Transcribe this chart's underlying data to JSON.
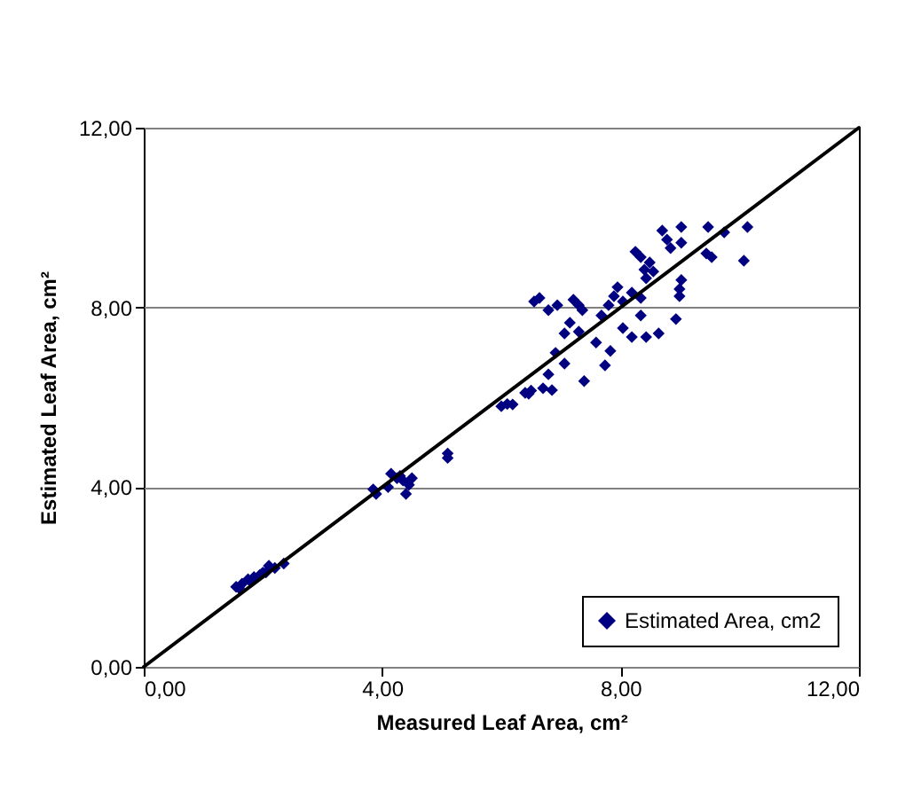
{
  "chart_data": {
    "type": "scatter",
    "xlabel": "Measured Leaf Area, cm²",
    "ylabel": "Estimated Leaf Area, cm²",
    "xlim": [
      0,
      12
    ],
    "ylim": [
      0,
      12
    ],
    "xticks": [
      {
        "value": 0,
        "label": "0,00"
      },
      {
        "value": 4,
        "label": "4,00"
      },
      {
        "value": 8,
        "label": "8,00"
      },
      {
        "value": 12,
        "label": "12,00"
      }
    ],
    "yticks": [
      {
        "value": 0,
        "label": "0,00"
      },
      {
        "value": 4,
        "label": "4,00"
      },
      {
        "value": 8,
        "label": "8,00"
      },
      {
        "value": 12,
        "label": "12,00"
      }
    ],
    "grid": "y",
    "legend": "bottom right",
    "marker": "diamond",
    "series": [
      {
        "name": "Estimated Area, cm2",
        "color": "#000080",
        "x": [
          1.55,
          1.6,
          1.65,
          1.75,
          1.8,
          1.85,
          1.95,
          2.0,
          2.05,
          2.1,
          2.2,
          2.35,
          3.85,
          3.9,
          4.1,
          4.15,
          4.25,
          4.3,
          4.35,
          4.4,
          4.45,
          4.5,
          5.1,
          5.1,
          6.0,
          6.1,
          6.4,
          6.5,
          6.19,
          6.46,
          6.7,
          6.85,
          6.79,
          7.06,
          6.91,
          7.39,
          7.74,
          7.83,
          7.59,
          7.06,
          7.3,
          7.15,
          6.55,
          6.64,
          6.79,
          6.94,
          7.21,
          7.3,
          7.36,
          7.68,
          7.8,
          7.95,
          8.04,
          8.19,
          8.19,
          8.34,
          8.43,
          8.34,
          8.43,
          8.25,
          8.34,
          8.49,
          8.55,
          8.64,
          8.7,
          8.78,
          8.84,
          9.02,
          8.93,
          8.99,
          8.99,
          9.02,
          9.02,
          9.47,
          9.44,
          9.53,
          9.74,
          10.13,
          10.07,
          8.4,
          7.89,
          8.04
        ],
        "values": [
          1.78,
          1.75,
          1.85,
          1.95,
          1.9,
          2.0,
          2.05,
          2.1,
          2.1,
          2.25,
          2.2,
          2.3,
          3.95,
          3.85,
          4.0,
          4.3,
          4.2,
          4.25,
          4.15,
          3.85,
          4.05,
          4.2,
          4.75,
          4.65,
          5.8,
          5.85,
          6.1,
          6.15,
          5.84,
          6.08,
          6.2,
          6.16,
          6.51,
          6.75,
          6.99,
          6.36,
          6.71,
          7.03,
          7.22,
          7.42,
          7.46,
          7.66,
          8.13,
          8.21,
          7.94,
          8.05,
          8.17,
          8.05,
          7.94,
          7.82,
          8.05,
          8.45,
          7.54,
          7.34,
          8.33,
          7.82,
          7.34,
          8.21,
          8.65,
          9.24,
          9.12,
          9.0,
          8.8,
          7.42,
          9.71,
          9.51,
          9.32,
          9.44,
          7.74,
          8.25,
          8.41,
          8.61,
          9.79,
          9.79,
          9.2,
          9.12,
          9.67,
          9.79,
          9.04,
          8.84,
          8.25,
          8.13
        ]
      },
      {
        "color": "#000000",
        "type": "line",
        "marker": "none",
        "x": [
          0,
          12
        ],
        "values": [
          0,
          12
        ]
      }
    ]
  }
}
